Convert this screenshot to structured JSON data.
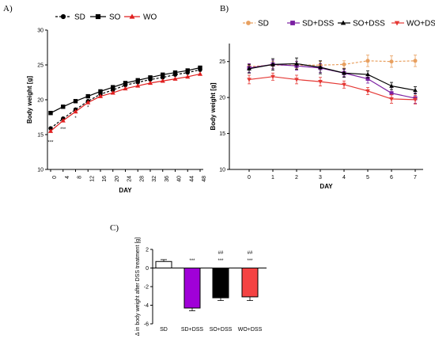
{
  "panels": [
    {
      "label": "A)"
    },
    {
      "label": "B)"
    },
    {
      "label": "C)"
    }
  ],
  "chart_data": [
    {
      "type": "line",
      "xlabel": "DAY",
      "ylabel": "Body weight [g]",
      "categories": [
        "0",
        "4",
        "8",
        "12",
        "16",
        "20",
        "24",
        "28",
        "32",
        "36",
        "40",
        "44",
        "48"
      ],
      "ylim": [
        10,
        30
      ],
      "yticks": [
        "10",
        "15",
        "20",
        "25",
        "30"
      ],
      "legend_position": "top",
      "series": [
        {
          "name": "SD",
          "marker": "circle",
          "dash": "3,2",
          "color": "#000000",
          "values": [
            15.9,
            17.3,
            18.6,
            19.8,
            20.8,
            21.4,
            22.1,
            22.5,
            22.9,
            23.2,
            23.6,
            23.9,
            24.3
          ]
        },
        {
          "name": "SO",
          "marker": "square",
          "dash": "",
          "color": "#000000",
          "values": [
            18.1,
            19.0,
            19.8,
            20.5,
            21.2,
            21.8,
            22.4,
            22.8,
            23.2,
            23.6,
            23.9,
            24.2,
            24.6
          ]
        },
        {
          "name": "WO",
          "marker": "triangle",
          "dash": "",
          "color": "#e02020",
          "values": [
            15.5,
            17.0,
            18.3,
            19.6,
            20.5,
            21.0,
            21.6,
            22.0,
            22.4,
            22.7,
            23.0,
            23.3,
            23.7
          ]
        }
      ],
      "annotations": [
        {
          "x": "0",
          "y": 13.9,
          "text": "***"
        },
        {
          "x": "4",
          "y": 15.8,
          "text": "***"
        },
        {
          "x": "8",
          "y": 17.4,
          "text": "*"
        },
        {
          "x": "12",
          "y": 18.9,
          "text": "*"
        }
      ]
    },
    {
      "type": "line",
      "xlabel": "DAY",
      "ylabel": "Body weight [g]",
      "categories": [
        "0",
        "1",
        "2",
        "3",
        "4",
        "5",
        "6",
        "7"
      ],
      "ylim": [
        10,
        27.5
      ],
      "yticks": [
        "10",
        "15",
        "20",
        "25"
      ],
      "legend_position": "top",
      "series": [
        {
          "name": "SD",
          "marker": "circle",
          "dash": "3,2",
          "color": "#e8a060",
          "values": [
            24.3,
            24.5,
            24.5,
            24.5,
            24.6,
            25.1,
            25.0,
            25.1
          ],
          "err": [
            0.4,
            0.5,
            0.5,
            0.5,
            0.5,
            0.8,
            0.8,
            0.8
          ]
        },
        {
          "name": "SD+DSS",
          "marker": "square",
          "dash": "",
          "color": "#7b1fa2",
          "values": [
            24.1,
            24.6,
            24.4,
            24.1,
            23.4,
            22.6,
            20.6,
            19.9
          ],
          "err": [
            0.6,
            0.6,
            0.6,
            0.6,
            0.5,
            0.6,
            0.8,
            0.7
          ]
        },
        {
          "name": "SO+DSS",
          "marker": "triangle",
          "dash": "",
          "color": "#000000",
          "values": [
            24.0,
            24.6,
            24.7,
            24.2,
            23.4,
            23.2,
            21.6,
            21.0
          ],
          "err": [
            0.6,
            0.8,
            0.8,
            0.9,
            0.6,
            0.5,
            0.5,
            0.5
          ]
        },
        {
          "name": "WO+DSS",
          "marker": "triangle-down",
          "dash": "",
          "color": "#e53935",
          "values": [
            22.5,
            22.9,
            22.5,
            22.2,
            21.8,
            20.9,
            19.8,
            19.7
          ],
          "err": [
            0.6,
            0.5,
            0.6,
            0.6,
            0.5,
            0.5,
            0.6,
            0.6
          ]
        }
      ]
    },
    {
      "type": "bar",
      "xlabel": "",
      "ylabel": "Δ in body weight after DSS treatment [g]",
      "categories": [
        "SD",
        "SD+DSS",
        "SO+DSS",
        "WO+DSS"
      ],
      "ylim": [
        -6,
        2
      ],
      "yticks": [
        "-6",
        "-4",
        "-2",
        "0",
        "2"
      ],
      "values": [
        0.7,
        -4.3,
        -3.2,
        -3.1
      ],
      "err": [
        0.2,
        0.3,
        0.3,
        0.4
      ],
      "colors": [
        "#ffffff",
        "#a000d8",
        "#000000",
        "#f44343"
      ],
      "significance": [
        "",
        "***",
        "***",
        "***"
      ],
      "significance2": [
        "",
        "",
        "##",
        "##"
      ]
    }
  ]
}
